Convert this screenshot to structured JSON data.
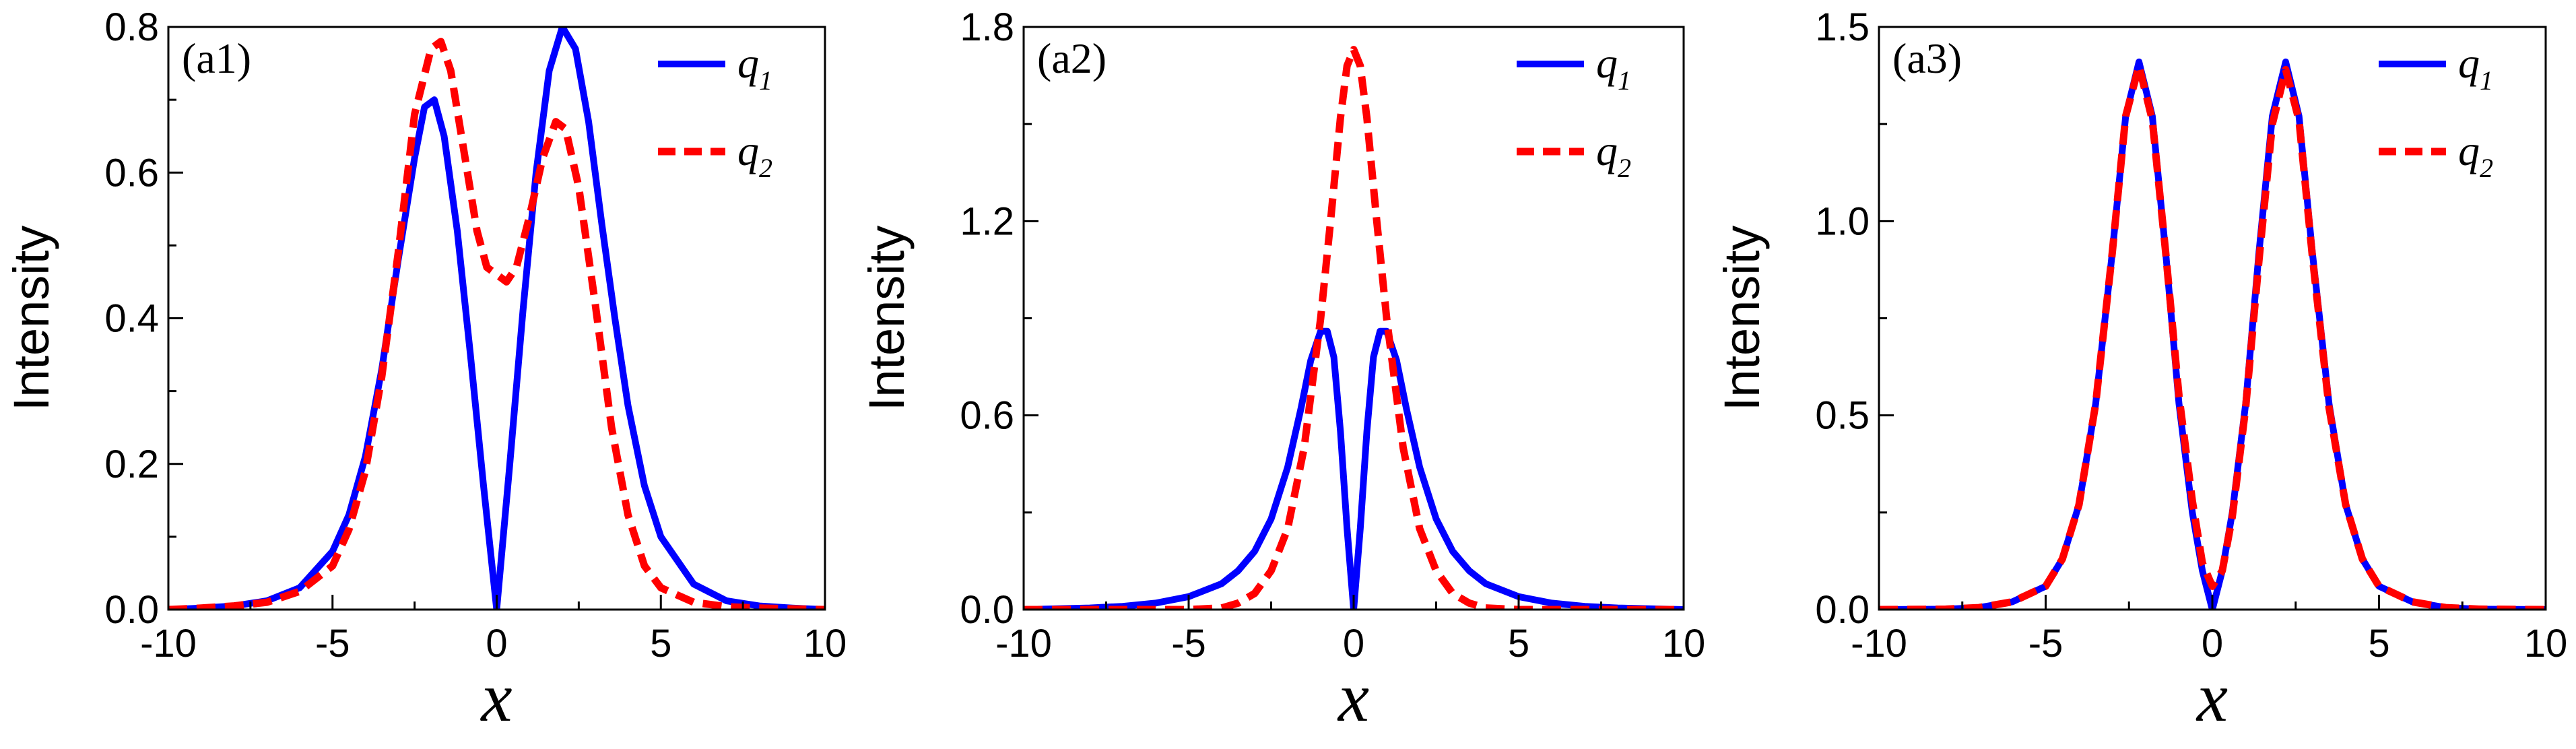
{
  "chart_data": [
    {
      "type": "line",
      "panel_label": "(a1)",
      "xlabel": "x",
      "ylabel": "Intensity",
      "xlim": [
        -10,
        10
      ],
      "ylim": [
        0,
        0.8
      ],
      "xticks": [
        -10,
        -5,
        0,
        5,
        10
      ],
      "xtick_labels": [
        "-10",
        "-5",
        "0",
        "5",
        "10"
      ],
      "yticks": [
        0,
        0.2,
        0.4,
        0.6,
        0.8
      ],
      "ytick_labels": [
        "0.0",
        "0.2",
        "0.4",
        "0.6",
        "0.8"
      ],
      "legend_position": "top-right",
      "grid": false,
      "series": [
        {
          "name": "q1",
          "legend_base": "q",
          "legend_sub": "1",
          "color": "#0000ff",
          "style": "solid",
          "points": [
            [
              -10,
              0.0
            ],
            [
              -9,
              0.002
            ],
            [
              -8,
              0.005
            ],
            [
              -7,
              0.012
            ],
            [
              -6,
              0.03
            ],
            [
              -5,
              0.08
            ],
            [
              -4.5,
              0.13
            ],
            [
              -4,
              0.21
            ],
            [
              -3.5,
              0.33
            ],
            [
              -3,
              0.48
            ],
            [
              -2.5,
              0.62
            ],
            [
              -2.2,
              0.69
            ],
            [
              -1.9,
              0.7
            ],
            [
              -1.6,
              0.65
            ],
            [
              -1.2,
              0.52
            ],
            [
              -0.8,
              0.35
            ],
            [
              -0.4,
              0.17
            ],
            [
              0,
              0.0
            ],
            [
              0.4,
              0.2
            ],
            [
              0.8,
              0.41
            ],
            [
              1.2,
              0.6
            ],
            [
              1.6,
              0.74
            ],
            [
              2,
              0.8
            ],
            [
              2.4,
              0.77
            ],
            [
              2.8,
              0.67
            ],
            [
              3.2,
              0.53
            ],
            [
              3.6,
              0.4
            ],
            [
              4,
              0.28
            ],
            [
              4.5,
              0.17
            ],
            [
              5,
              0.1
            ],
            [
              6,
              0.035
            ],
            [
              7,
              0.012
            ],
            [
              8,
              0.005
            ],
            [
              9,
              0.002
            ],
            [
              10,
              0.0
            ]
          ]
        },
        {
          "name": "q2",
          "legend_base": "q",
          "legend_sub": "2",
          "color": "#ff0000",
          "style": "dashed",
          "points": [
            [
              -10,
              0.0
            ],
            [
              -9,
              0.002
            ],
            [
              -8,
              0.005
            ],
            [
              -7,
              0.01
            ],
            [
              -6,
              0.025
            ],
            [
              -5,
              0.06
            ],
            [
              -4.5,
              0.11
            ],
            [
              -4,
              0.19
            ],
            [
              -3.5,
              0.32
            ],
            [
              -3,
              0.49
            ],
            [
              -2.5,
              0.68
            ],
            [
              -2,
              0.77
            ],
            [
              -1.7,
              0.78
            ],
            [
              -1.4,
              0.74
            ],
            [
              -1,
              0.63
            ],
            [
              -0.6,
              0.52
            ],
            [
              -0.3,
              0.47
            ],
            [
              0,
              0.46
            ],
            [
              0.3,
              0.45
            ],
            [
              0.6,
              0.47
            ],
            [
              1,
              0.54
            ],
            [
              1.4,
              0.62
            ],
            [
              1.8,
              0.67
            ],
            [
              2.1,
              0.66
            ],
            [
              2.5,
              0.58
            ],
            [
              3,
              0.42
            ],
            [
              3.5,
              0.25
            ],
            [
              4,
              0.13
            ],
            [
              4.5,
              0.06
            ],
            [
              5,
              0.03
            ],
            [
              6,
              0.01
            ],
            [
              7,
              0.004
            ],
            [
              8,
              0.002
            ],
            [
              10,
              0.0
            ]
          ]
        }
      ]
    },
    {
      "type": "line",
      "panel_label": "(a2)",
      "xlabel": "x",
      "ylabel": "Intensity",
      "xlim": [
        -10,
        10
      ],
      "ylim": [
        0,
        1.8
      ],
      "xticks": [
        -10,
        -5,
        0,
        5,
        10
      ],
      "xtick_labels": [
        "-10",
        "-5",
        "0",
        "5",
        "10"
      ],
      "yticks": [
        0,
        0.6,
        1.2,
        1.8
      ],
      "ytick_labels": [
        "0.0",
        "0.6",
        "1.2",
        "1.8"
      ],
      "legend_position": "top-right",
      "grid": false,
      "series": [
        {
          "name": "q1",
          "legend_base": "q",
          "legend_sub": "1",
          "color": "#0000ff",
          "style": "solid",
          "points": [
            [
              -10,
              0.0
            ],
            [
              -8,
              0.005
            ],
            [
              -7,
              0.01
            ],
            [
              -6,
              0.02
            ],
            [
              -5,
              0.04
            ],
            [
              -4,
              0.08
            ],
            [
              -3.5,
              0.12
            ],
            [
              -3,
              0.18
            ],
            [
              -2.5,
              0.28
            ],
            [
              -2,
              0.44
            ],
            [
              -1.6,
              0.62
            ],
            [
              -1.3,
              0.77
            ],
            [
              -1,
              0.86
            ],
            [
              -0.8,
              0.86
            ],
            [
              -0.6,
              0.78
            ],
            [
              -0.4,
              0.55
            ],
            [
              -0.2,
              0.25
            ],
            [
              0,
              0.0
            ],
            [
              0.2,
              0.25
            ],
            [
              0.4,
              0.55
            ],
            [
              0.6,
              0.78
            ],
            [
              0.8,
              0.86
            ],
            [
              1,
              0.86
            ],
            [
              1.3,
              0.77
            ],
            [
              1.6,
              0.62
            ],
            [
              2,
              0.44
            ],
            [
              2.5,
              0.28
            ],
            [
              3,
              0.18
            ],
            [
              3.5,
              0.12
            ],
            [
              4,
              0.08
            ],
            [
              5,
              0.04
            ],
            [
              6,
              0.02
            ],
            [
              7,
              0.01
            ],
            [
              8,
              0.005
            ],
            [
              10,
              0.0
            ]
          ]
        },
        {
          "name": "q2",
          "legend_base": "q",
          "legend_sub": "2",
          "color": "#ff0000",
          "style": "dashed",
          "points": [
            [
              -10,
              0.0
            ],
            [
              -5,
              0.0
            ],
            [
              -4,
              0.005
            ],
            [
              -3.5,
              0.02
            ],
            [
              -3,
              0.05
            ],
            [
              -2.5,
              0.12
            ],
            [
              -2,
              0.25
            ],
            [
              -1.5,
              0.5
            ],
            [
              -1,
              0.9
            ],
            [
              -0.7,
              1.2
            ],
            [
              -0.4,
              1.52
            ],
            [
              -0.2,
              1.68
            ],
            [
              0,
              1.73
            ],
            [
              0.2,
              1.68
            ],
            [
              0.4,
              1.52
            ],
            [
              0.7,
              1.2
            ],
            [
              1,
              0.9
            ],
            [
              1.5,
              0.5
            ],
            [
              2,
              0.25
            ],
            [
              2.5,
              0.12
            ],
            [
              3,
              0.05
            ],
            [
              3.5,
              0.02
            ],
            [
              4,
              0.005
            ],
            [
              5,
              0.0
            ],
            [
              10,
              0.0
            ]
          ]
        }
      ]
    },
    {
      "type": "line",
      "panel_label": "(a3)",
      "xlabel": "x",
      "ylabel": "Intensity",
      "xlim": [
        -10,
        10
      ],
      "ylim": [
        0,
        1.5
      ],
      "xticks": [
        -10,
        -5,
        0,
        5,
        10
      ],
      "xtick_labels": [
        "-10",
        "-5",
        "0",
        "5",
        "10"
      ],
      "yticks": [
        0,
        0.5,
        1.0,
        1.5
      ],
      "ytick_labels": [
        "0.0",
        "0.5",
        "1.0",
        "1.5"
      ],
      "legend_position": "top-right",
      "grid": false,
      "series": [
        {
          "name": "q1",
          "legend_base": "q",
          "legend_sub": "1",
          "color": "#0000ff",
          "style": "solid",
          "points": [
            [
              -10,
              0.0
            ],
            [
              -8,
              0.001
            ],
            [
              -7,
              0.005
            ],
            [
              -6,
              0.02
            ],
            [
              -5,
              0.06
            ],
            [
              -4.5,
              0.13
            ],
            [
              -4,
              0.27
            ],
            [
              -3.5,
              0.53
            ],
            [
              -3,
              0.92
            ],
            [
              -2.6,
              1.27
            ],
            [
              -2.2,
              1.41
            ],
            [
              -1.8,
              1.27
            ],
            [
              -1.4,
              0.92
            ],
            [
              -1,
              0.53
            ],
            [
              -0.6,
              0.25
            ],
            [
              -0.3,
              0.1
            ],
            [
              0,
              0.0
            ],
            [
              0.3,
              0.1
            ],
            [
              0.6,
              0.25
            ],
            [
              1,
              0.53
            ],
            [
              1.4,
              0.92
            ],
            [
              1.8,
              1.27
            ],
            [
              2.2,
              1.41
            ],
            [
              2.6,
              1.27
            ],
            [
              3,
              0.92
            ],
            [
              3.5,
              0.53
            ],
            [
              4,
              0.27
            ],
            [
              4.5,
              0.13
            ],
            [
              5,
              0.06
            ],
            [
              6,
              0.02
            ],
            [
              7,
              0.005
            ],
            [
              8,
              0.001
            ],
            [
              10,
              0.0
            ]
          ]
        },
        {
          "name": "q2",
          "legend_base": "q",
          "legend_sub": "2",
          "color": "#ff0000",
          "style": "dashed",
          "points": [
            [
              -10,
              0.0
            ],
            [
              -8,
              0.001
            ],
            [
              -7,
              0.005
            ],
            [
              -6,
              0.02
            ],
            [
              -5,
              0.06
            ],
            [
              -4.5,
              0.13
            ],
            [
              -4,
              0.27
            ],
            [
              -3.5,
              0.53
            ],
            [
              -3,
              0.92
            ],
            [
              -2.6,
              1.27
            ],
            [
              -2.2,
              1.4
            ],
            [
              -1.8,
              1.26
            ],
            [
              -1.4,
              0.92
            ],
            [
              -1,
              0.55
            ],
            [
              -0.6,
              0.28
            ],
            [
              -0.3,
              0.12
            ],
            [
              0,
              0.06
            ],
            [
              0.3,
              0.1
            ],
            [
              0.6,
              0.24
            ],
            [
              1,
              0.52
            ],
            [
              1.4,
              0.9
            ],
            [
              1.8,
              1.25
            ],
            [
              2.2,
              1.39
            ],
            [
              2.6,
              1.26
            ],
            [
              3,
              0.91
            ],
            [
              3.5,
              0.52
            ],
            [
              4,
              0.27
            ],
            [
              4.5,
              0.13
            ],
            [
              5,
              0.06
            ],
            [
              6,
              0.02
            ],
            [
              7,
              0.005
            ],
            [
              8,
              0.001
            ],
            [
              10,
              0.0
            ]
          ]
        }
      ]
    }
  ]
}
